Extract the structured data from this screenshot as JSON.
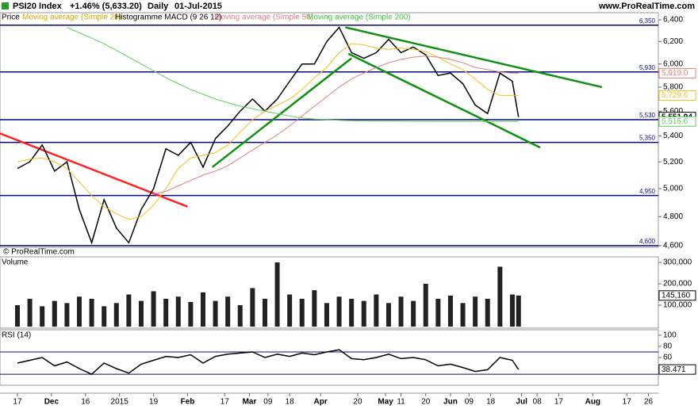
{
  "header": {
    "title": "PSI20 Index",
    "change": "+1.46% (5,633.20)",
    "period": "Daily",
    "date": "01-Jul-2015",
    "site": "www.ProRealTime.com",
    "copyright": "© ProRealTime.com",
    "indicators": [
      "Price",
      "Moving average (Simple 20)",
      "Histogramme MACD (9 26 12)",
      "Moving average (Simple 50)",
      "Moving average (Simple 200)"
    ]
  },
  "chart_data": [
    {
      "type": "line",
      "log": true,
      "xlim": [
        -5.64,
        207.2
      ],
      "ylim": [
        4589,
        6422
      ],
      "yticks": [
        {
          "value": 4600,
          "label": "4,600"
        },
        {
          "value": 4800,
          "label": "4,800"
        },
        {
          "value": 5000,
          "label": "5,000"
        },
        {
          "value": 5200,
          "label": "5,200"
        },
        {
          "value": 5400,
          "label": "5,400"
        },
        {
          "value": 5600,
          "label": "5,600"
        },
        {
          "value": 5800,
          "label": "5,800"
        },
        {
          "value": 6000,
          "label": "6,000"
        },
        {
          "value": 6200,
          "label": "6,200"
        },
        {
          "value": 6400,
          "label": "6,400"
        }
      ],
      "levels": [
        {
          "value": 6350,
          "label": "6,350"
        },
        {
          "value": 5930,
          "label": "5,930"
        },
        {
          "value": 5530,
          "label": "5,530"
        },
        {
          "value": 5350,
          "label": "5,350"
        },
        {
          "value": 4950,
          "label": "4,950"
        },
        {
          "value": 4600,
          "label": "4,600"
        }
      ],
      "x": [
        0,
        4,
        8,
        12,
        16,
        20,
        24,
        28,
        32,
        36,
        40,
        44,
        48,
        52,
        56,
        60,
        64,
        68,
        72,
        76,
        80,
        84,
        88,
        92,
        96,
        100,
        104,
        108,
        112,
        116,
        120,
        124,
        128,
        132,
        136,
        140,
        144,
        148,
        152,
        156,
        160,
        162
      ],
      "series": [
        {
          "name": "Price",
          "color": "#000000",
          "last_label": "5,551.94",
          "values": [
            5150,
            5200,
            5330,
            5130,
            5200,
            4850,
            4620,
            4920,
            4720,
            4620,
            4850,
            5000,
            5300,
            5250,
            5350,
            5160,
            5380,
            5480,
            5600,
            5700,
            5600,
            5700,
            5850,
            6000,
            6000,
            6200,
            6330,
            6100,
            6050,
            6100,
            6220,
            6100,
            6150,
            6080,
            5900,
            5920,
            5830,
            5650,
            5580,
            5920,
            5850,
            5551.94
          ]
        },
        {
          "name": "Moving average (Simple 20)",
          "color": "#f0c020",
          "last_label": "5,729.6",
          "values": [
            5200,
            5220,
            5230,
            5200,
            5150,
            5050,
            4950,
            4870,
            4820,
            4780,
            4800,
            4880,
            5000,
            5150,
            5230,
            5250,
            5270,
            5330,
            5430,
            5530,
            5600,
            5650,
            5700,
            5780,
            5880,
            5970,
            6100,
            6180,
            6170,
            6140,
            6130,
            6140,
            6130,
            6110,
            6060,
            6000,
            5950,
            5870,
            5780,
            5730,
            5730,
            5729.6
          ]
        },
        {
          "name": "Moving average (Simple 50)",
          "color": "#e08080",
          "last_label": "5,919.0",
          "values": [
            null,
            null,
            null,
            null,
            null,
            null,
            null,
            null,
            null,
            null,
            null,
            4960,
            4980,
            5020,
            5060,
            5100,
            5130,
            5170,
            5230,
            5290,
            5350,
            5410,
            5480,
            5560,
            5640,
            5720,
            5800,
            5870,
            5920,
            5970,
            6010,
            6040,
            6060,
            6070,
            6060,
            6040,
            6010,
            5970,
            5950,
            5930,
            5920,
            5919.0
          ]
        },
        {
          "name": "Moving average (Simple 200)",
          "color": "#60d060",
          "last_label": "5,515.6",
          "values": [
            null,
            null,
            null,
            null,
            6330,
            6280,
            6230,
            6180,
            6120,
            6060,
            6000,
            5940,
            5880,
            5830,
            5780,
            5740,
            5700,
            5670,
            5640,
            5620,
            5600,
            5580,
            5560,
            5545,
            5535,
            5530,
            5525,
            5522,
            5520,
            5519,
            5518,
            5518,
            5517,
            5517,
            5516,
            5516,
            5516,
            5516,
            5515.8,
            5515.7,
            5515.6,
            5515.6
          ]
        }
      ],
      "trendlines": [
        {
          "color": "#ff2020",
          "x": [
            -5.6,
            55
          ],
          "y": [
            5420,
            4870
          ]
        },
        {
          "color": "#109010",
          "x": [
            63,
            108
          ],
          "y": [
            5160,
            6050
          ]
        },
        {
          "color": "#109010",
          "x": [
            106,
            189
          ],
          "y": [
            6330,
            5800
          ]
        },
        {
          "color": "#109010",
          "x": [
            107,
            169
          ],
          "y": [
            6090,
            5310
          ]
        }
      ]
    },
    {
      "type": "bar",
      "title": "Volume",
      "xlim": [
        -5.64,
        207.2
      ],
      "ylim": [
        0,
        326000
      ],
      "yticks": [
        {
          "value": 100000,
          "label": "100,000"
        },
        {
          "value": 200000,
          "label": "200,000"
        },
        {
          "value": 300000,
          "label": "300,000"
        }
      ],
      "x": [
        0,
        4,
        8,
        12,
        16,
        20,
        24,
        28,
        32,
        36,
        40,
        44,
        48,
        52,
        56,
        60,
        64,
        68,
        72,
        76,
        80,
        84,
        88,
        92,
        96,
        100,
        104,
        108,
        112,
        116,
        120,
        124,
        128,
        132,
        136,
        140,
        144,
        148,
        152,
        156,
        160,
        162
      ],
      "series": [
        {
          "name": "Volume",
          "color": "#222222",
          "last_label": "145,160",
          "values": [
            100000,
            130000,
            95000,
            120000,
            110000,
            140000,
            130000,
            95000,
            110000,
            150000,
            120000,
            165000,
            130000,
            140000,
            115000,
            160000,
            120000,
            140000,
            100000,
            180000,
            130000,
            300000,
            150000,
            130000,
            170000,
            110000,
            140000,
            130000,
            120000,
            150000,
            110000,
            140000,
            120000,
            200000,
            130000,
            145000,
            110000,
            140000,
            130000,
            280000,
            150000,
            145160
          ]
        }
      ]
    },
    {
      "type": "line",
      "title": "RSI (14)",
      "xlim": [
        -5.64,
        207.2
      ],
      "ylim": [
        13,
        107
      ],
      "yticks": [
        40,
        60,
        80,
        100
      ],
      "levels": [
        70,
        30
      ],
      "x": [
        0,
        4,
        8,
        12,
        16,
        20,
        24,
        28,
        32,
        36,
        40,
        44,
        48,
        52,
        56,
        60,
        64,
        68,
        72,
        76,
        80,
        84,
        88,
        92,
        96,
        100,
        104,
        108,
        112,
        116,
        120,
        124,
        128,
        132,
        136,
        140,
        144,
        148,
        152,
        156,
        160,
        162
      ],
      "series": [
        {
          "name": "RSI (14)",
          "color": "#000000",
          "last_label": "38.471",
          "values": [
            50,
            55,
            60,
            45,
            52,
            40,
            30,
            50,
            40,
            32,
            48,
            55,
            62,
            60,
            65,
            50,
            62,
            66,
            68,
            70,
            60,
            66,
            62,
            68,
            65,
            70,
            74,
            58,
            56,
            60,
            66,
            58,
            60,
            56,
            45,
            48,
            42,
            35,
            38,
            60,
            55,
            38.471
          ]
        }
      ],
      "xticks": [
        {
          "value": 0,
          "label": "17"
        },
        {
          "value": 11,
          "label": "Dec"
        },
        {
          "value": 22,
          "label": "16"
        },
        {
          "value": 33,
          "label": "2015"
        },
        {
          "value": 44,
          "label": "19"
        },
        {
          "value": 55,
          "label": "Feb"
        },
        {
          "value": 67,
          "label": "17"
        },
        {
          "value": 75,
          "label": "Mar"
        },
        {
          "value": 81,
          "label": "09"
        },
        {
          "value": 88,
          "label": "18"
        },
        {
          "value": 98,
          "label": "Apr"
        },
        {
          "value": 110,
          "label": "20"
        },
        {
          "value": 119,
          "label": "May"
        },
        {
          "value": 124,
          "label": "11"
        },
        {
          "value": 132,
          "label": "20"
        },
        {
          "value": 140,
          "label": "Jun"
        },
        {
          "value": 146,
          "label": "09"
        },
        {
          "value": 153,
          "label": "18"
        },
        {
          "value": 163,
          "label": "Jul"
        },
        {
          "value": 168,
          "label": "08"
        },
        {
          "value": 175,
          "label": "17"
        },
        {
          "value": 186,
          "label": "Aug"
        },
        {
          "value": 197,
          "label": "17"
        },
        {
          "value": 204,
          "label": "26"
        }
      ]
    }
  ]
}
